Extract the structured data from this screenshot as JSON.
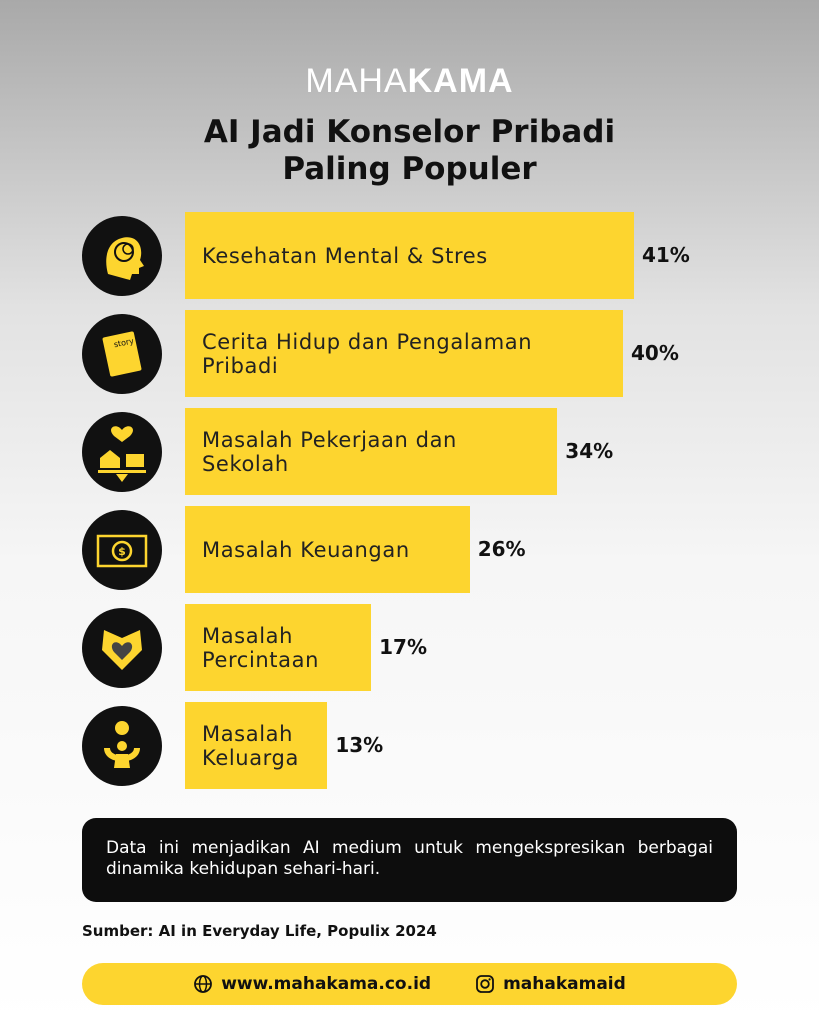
{
  "brand": {
    "light": "MAHA",
    "bold": "KAMA"
  },
  "chart_data": {
    "type": "bar",
    "orientation": "horizontal",
    "title": "AI Jadi Konselor Pribadi Paling Populer",
    "categories": [
      "Kesehatan Mental & Stres",
      "Cerita Hidup dan Pengalaman Pribadi",
      "Masalah Pekerjaan dan Sekolah",
      "Masalah Keuangan",
      "Masalah Percintaan",
      "Masalah Keluarga"
    ],
    "values": [
      41,
      40,
      34,
      26,
      17,
      13
    ],
    "value_labels": [
      "41%",
      "40%",
      "34%",
      "26%",
      "17%",
      "13%"
    ],
    "color": "#fdd52f"
  },
  "note": "Data ini menjadikan AI medium untuk mengekspresikan berbagai dinamika kehidupan sehari-hari.",
  "source": "Sumber: AI in Everyday Life, Populix 2024",
  "footer": {
    "website": "www.mahakama.co.id",
    "instagram": "mahakamaid"
  }
}
